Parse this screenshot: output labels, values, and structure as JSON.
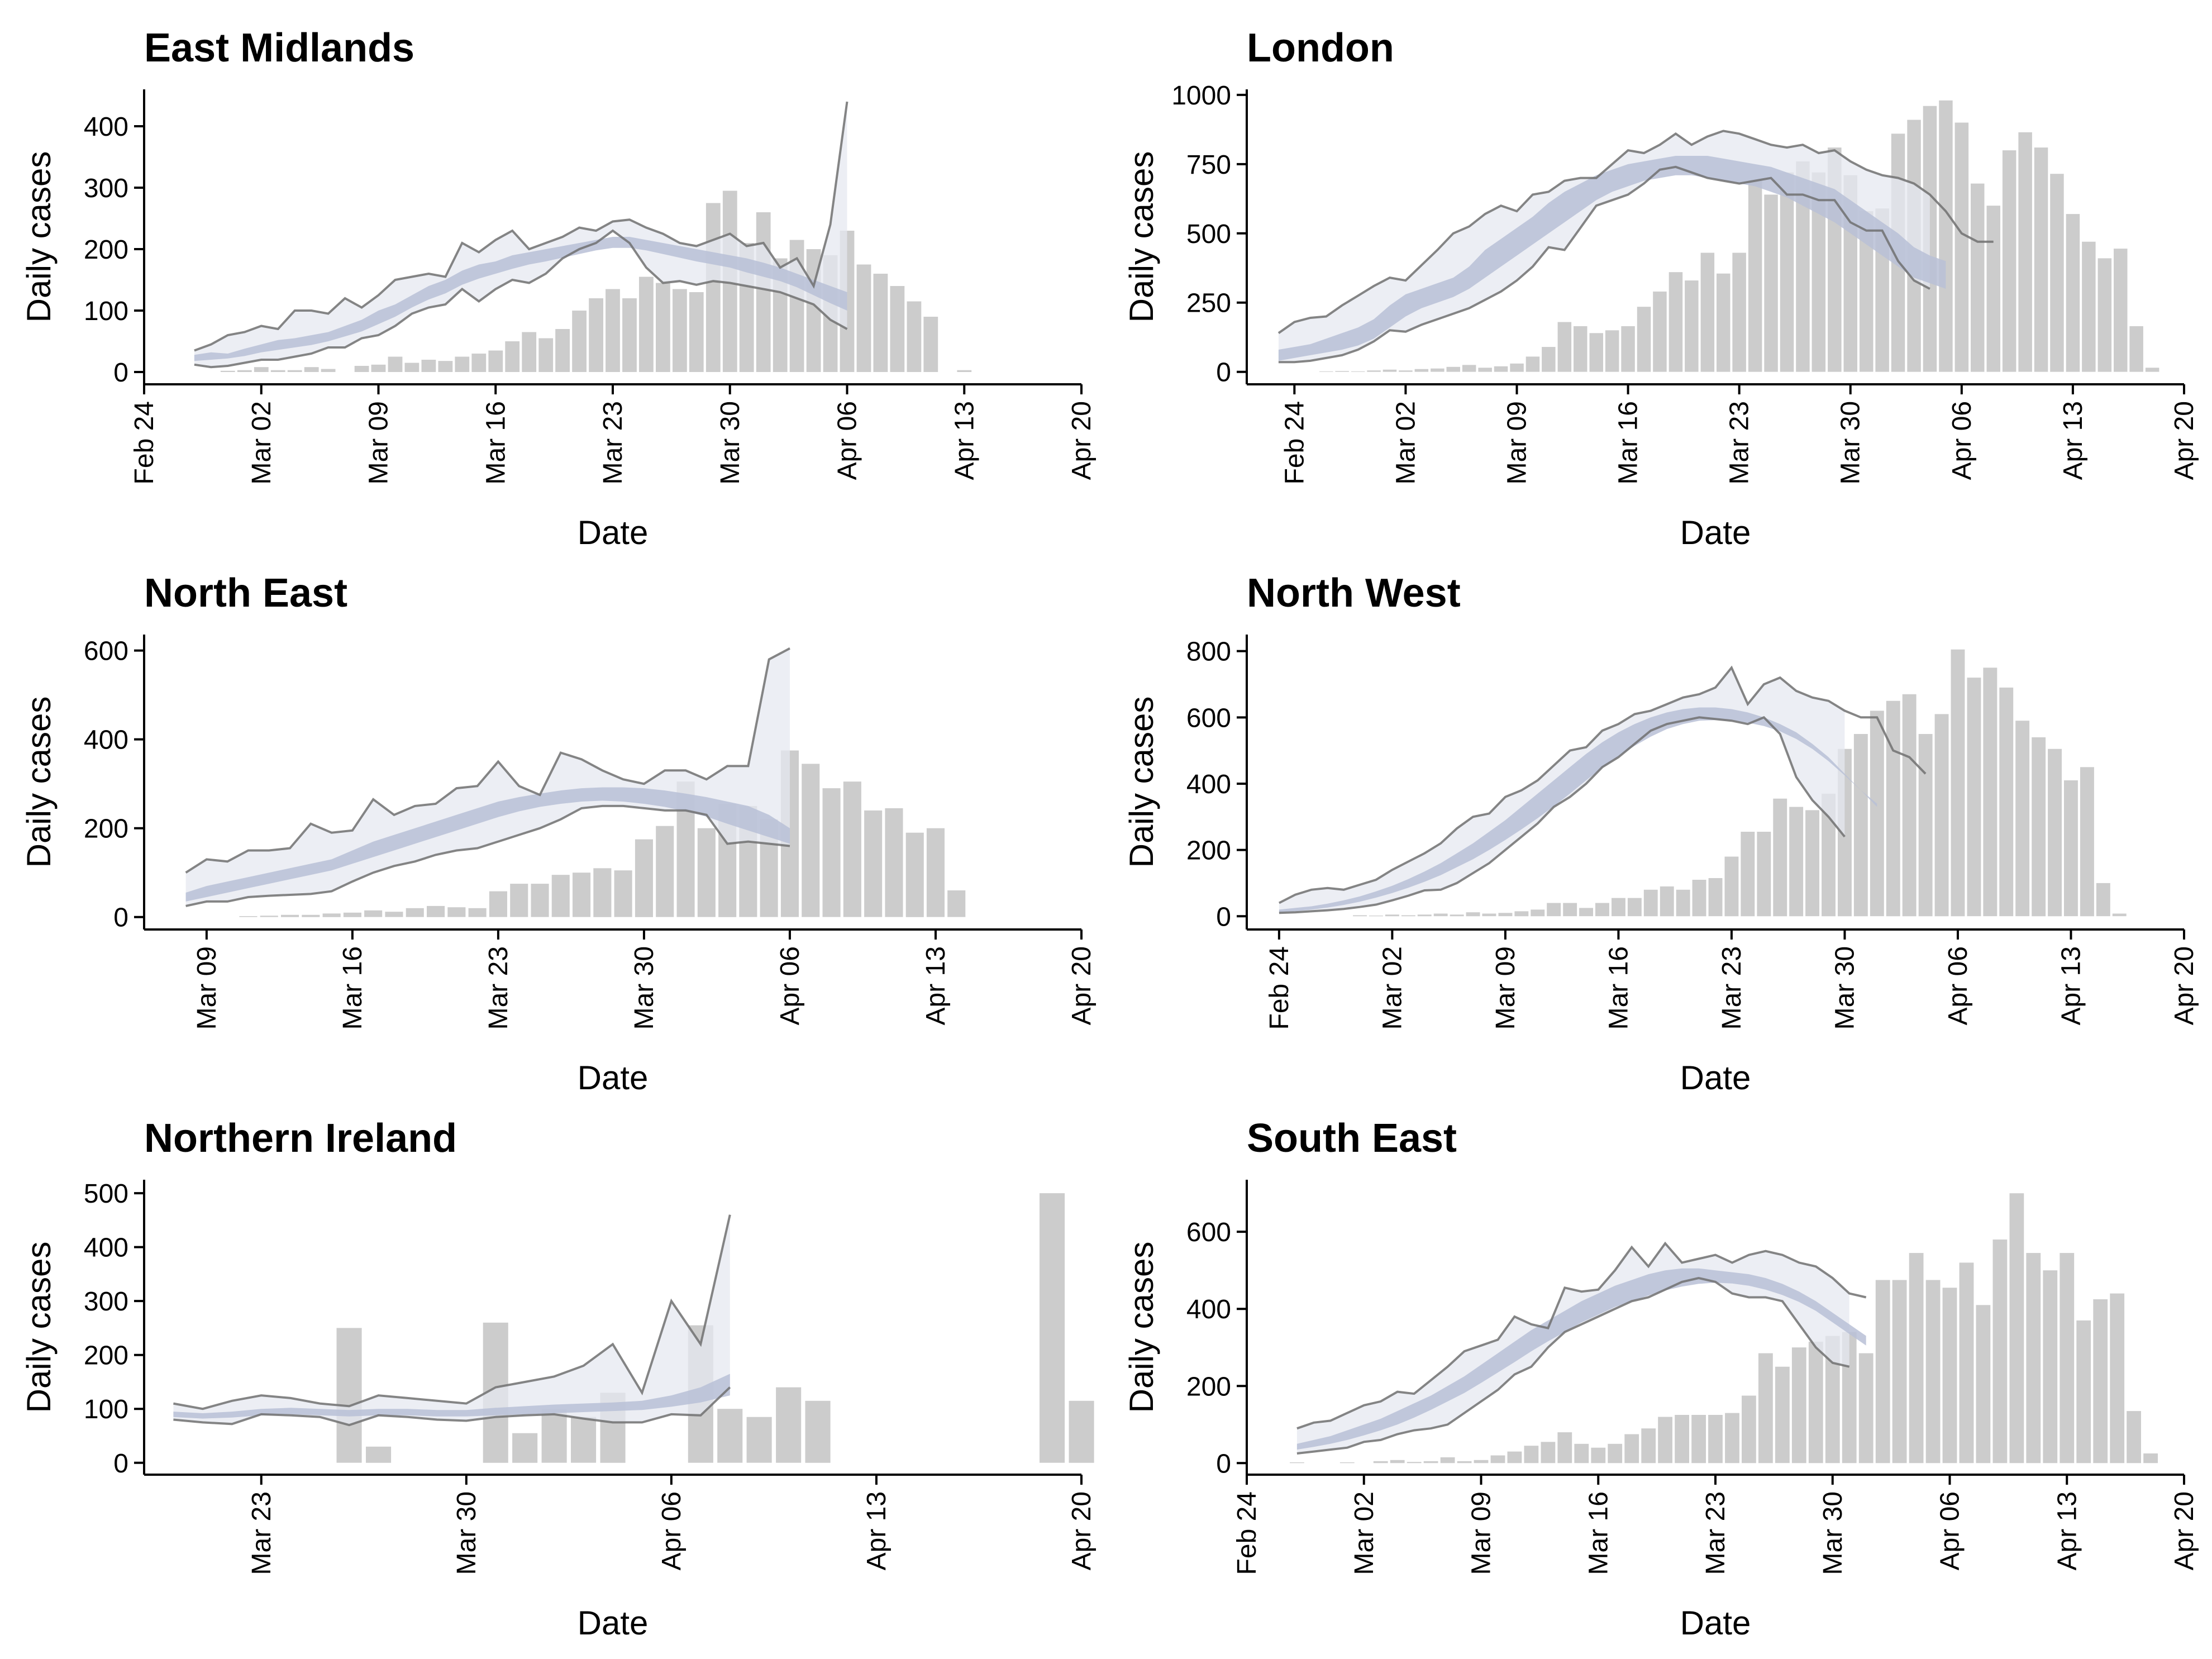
{
  "colors": {
    "bar": "#cccccc",
    "ribbon_outer": "#e6e8f0",
    "ribbon_inner": "#b9c0d6",
    "ci_line": "#707070",
    "axis": "#000000"
  },
  "chart_data": [
    {
      "type": "bar",
      "title": "East Midlands",
      "xlabel": "Date",
      "ylabel": "Daily cases",
      "x_range": [
        "2020-02-24",
        "2020-04-20"
      ],
      "x_ticks": [
        "Feb 24",
        "Mar 02",
        "Mar 09",
        "Mar 16",
        "Mar 23",
        "Mar 30",
        "Apr 06",
        "Apr 13",
        "Apr 20"
      ],
      "ylim": [
        -20,
        460
      ],
      "y_ticks": [
        0,
        100,
        200,
        300,
        400
      ],
      "y_tick_labels": [
        "0",
        "100",
        "200",
        "300",
        "400"
      ],
      "bars_start": "2020-02-27",
      "bar_values": [
        0,
        0,
        2,
        3,
        8,
        3,
        3,
        8,
        5,
        0,
        10,
        12,
        25,
        15,
        20,
        18,
        25,
        30,
        35,
        50,
        65,
        55,
        70,
        100,
        120,
        135,
        120,
        155,
        145,
        135,
        130,
        275,
        295,
        210,
        260,
        185,
        215,
        200,
        190,
        230,
        175,
        160,
        140,
        115,
        90,
        0,
        3
      ],
      "ribbon_start": "2020-02-27",
      "ci_outer_upper": [
        35,
        45,
        60,
        65,
        75,
        70,
        100,
        100,
        95,
        120,
        105,
        125,
        150,
        155,
        160,
        155,
        210,
        195,
        215,
        230,
        200,
        210,
        220,
        235,
        230,
        245,
        248,
        235,
        225,
        210,
        205,
        215,
        225,
        205,
        210,
        170,
        185,
        140,
        240,
        440
      ],
      "ci_outer_lower": [
        12,
        8,
        10,
        15,
        20,
        20,
        25,
        30,
        40,
        40,
        55,
        60,
        75,
        95,
        105,
        110,
        135,
        115,
        135,
        150,
        145,
        160,
        185,
        200,
        210,
        230,
        210,
        170,
        145,
        148,
        142,
        148,
        145,
        140,
        135,
        130,
        120,
        110,
        85,
        70
      ],
      "ci_inner_upper": [
        28,
        32,
        30,
        38,
        45,
        52,
        55,
        60,
        65,
        75,
        85,
        100,
        110,
        125,
        140,
        150,
        165,
        175,
        180,
        190,
        195,
        200,
        205,
        210,
        215,
        220,
        220,
        215,
        210,
        205,
        200,
        195,
        190,
        185,
        178,
        170,
        160,
        150,
        140,
        130
      ],
      "ci_inner_lower": [
        18,
        20,
        22,
        26,
        32,
        36,
        40,
        44,
        50,
        58,
        66,
        78,
        90,
        105,
        118,
        128,
        142,
        152,
        160,
        168,
        175,
        180,
        186,
        192,
        198,
        202,
        202,
        198,
        192,
        186,
        180,
        175,
        170,
        162,
        155,
        148,
        138,
        125,
        112,
        100
      ]
    },
    {
      "type": "bar",
      "title": "London",
      "xlabel": "Date",
      "ylabel": "Daily cases",
      "x_range": [
        "2020-02-21",
        "2020-04-20"
      ],
      "x_ticks": [
        "Feb 24",
        "Mar 02",
        "Mar 09",
        "Mar 16",
        "Mar 23",
        "Mar 30",
        "Apr 06",
        "Apr 13",
        "Apr 20"
      ],
      "ylim": [
        -45,
        1020
      ],
      "y_ticks": [
        0,
        250,
        500,
        750,
        1000
      ],
      "y_tick_labels": [
        "0",
        "250",
        "500",
        "750",
        "1000"
      ],
      "bars_start": "2020-02-23",
      "bar_values": [
        0,
        0,
        0,
        2,
        3,
        2,
        5,
        8,
        5,
        10,
        12,
        18,
        25,
        15,
        20,
        30,
        55,
        90,
        180,
        165,
        140,
        150,
        165,
        235,
        290,
        360,
        330,
        430,
        355,
        430,
        690,
        640,
        720,
        760,
        720,
        810,
        710,
        580,
        590,
        860,
        910,
        960,
        980,
        900,
        680,
        600,
        800,
        865,
        810,
        715,
        570,
        470,
        410,
        445,
        165,
        15
      ],
      "ribbon_start": "2020-02-23",
      "ci_outer_upper": [
        140,
        180,
        195,
        200,
        240,
        275,
        310,
        340,
        330,
        385,
        440,
        500,
        525,
        570,
        600,
        580,
        640,
        650,
        690,
        700,
        700,
        750,
        800,
        790,
        820,
        860,
        820,
        850,
        870,
        860,
        840,
        820,
        810,
        820,
        790,
        800,
        760,
        730,
        710,
        700,
        680,
        640,
        580,
        500,
        470,
        470
      ],
      "ci_outer_lower": [
        35,
        35,
        40,
        50,
        60,
        80,
        110,
        150,
        145,
        170,
        190,
        210,
        230,
        260,
        290,
        330,
        380,
        450,
        440,
        520,
        600,
        620,
        640,
        680,
        730,
        740,
        720,
        700,
        690,
        680,
        690,
        700,
        640,
        640,
        620,
        620,
        540,
        510,
        510,
        400,
        330,
        300
      ],
      "ci_inner_upper": [
        80,
        90,
        100,
        120,
        140,
        160,
        190,
        240,
        280,
        300,
        320,
        340,
        380,
        440,
        480,
        520,
        560,
        610,
        650,
        680,
        710,
        730,
        750,
        760,
        770,
        780,
        780,
        780,
        770,
        760,
        750,
        740,
        720,
        700,
        680,
        660,
        620,
        580,
        540,
        500,
        450,
        420,
        400
      ],
      "ci_inner_lower": [
        40,
        50,
        60,
        70,
        80,
        95,
        120,
        160,
        200,
        230,
        250,
        270,
        300,
        340,
        380,
        420,
        460,
        500,
        540,
        580,
        620,
        650,
        670,
        690,
        700,
        710,
        710,
        700,
        690,
        680,
        670,
        650,
        630,
        600,
        570,
        540,
        500,
        460,
        420,
        380,
        340,
        320,
        300
      ]
    },
    {
      "type": "bar",
      "title": "North East",
      "xlabel": "Date",
      "ylabel": "Daily cases",
      "x_range": [
        "2020-03-06",
        "2020-04-20"
      ],
      "x_ticks": [
        "Mar 09",
        "Mar 16",
        "Mar 23",
        "Mar 30",
        "Apr 06",
        "Apr 13",
        "Apr 20"
      ],
      "ylim": [
        -28,
        636
      ],
      "y_ticks": [
        0,
        200,
        400,
        600
      ],
      "y_tick_labels": [
        "0",
        "200",
        "400",
        "600"
      ],
      "bars_start": "2020-03-08",
      "bar_values": [
        0,
        0,
        0,
        2,
        3,
        5,
        5,
        8,
        10,
        15,
        12,
        20,
        25,
        22,
        20,
        58,
        75,
        75,
        95,
        100,
        110,
        105,
        175,
        205,
        305,
        200,
        255,
        250,
        220,
        375,
        345,
        290,
        305,
        240,
        245,
        190,
        200,
        60
      ],
      "ribbon_start": "2020-03-08",
      "ci_outer_upper": [
        100,
        130,
        125,
        150,
        150,
        155,
        210,
        190,
        195,
        265,
        230,
        250,
        255,
        290,
        295,
        350,
        295,
        275,
        370,
        355,
        330,
        310,
        300,
        330,
        330,
        310,
        340,
        340,
        580,
        605
      ],
      "ci_outer_lower": [
        25,
        35,
        35,
        45,
        48,
        50,
        52,
        58,
        80,
        100,
        115,
        125,
        140,
        150,
        155,
        170,
        185,
        200,
        220,
        245,
        250,
        250,
        245,
        240,
        240,
        230,
        165,
        170,
        165,
        160
      ],
      "ci_inner_upper": [
        55,
        70,
        80,
        90,
        100,
        110,
        120,
        130,
        150,
        170,
        185,
        200,
        215,
        230,
        245,
        260,
        270,
        278,
        285,
        290,
        292,
        292,
        290,
        285,
        278,
        270,
        260,
        250,
        230,
        200
      ],
      "ci_inner_lower": [
        35,
        45,
        55,
        65,
        75,
        85,
        95,
        105,
        120,
        135,
        150,
        165,
        180,
        195,
        210,
        225,
        238,
        248,
        255,
        260,
        262,
        260,
        255,
        248,
        238,
        226,
        210,
        195,
        180,
        165
      ]
    },
    {
      "type": "bar",
      "title": "North West",
      "xlabel": "Date",
      "ylabel": "Daily cases",
      "x_range": [
        "2020-02-22",
        "2020-04-20"
      ],
      "x_ticks": [
        "Feb 24",
        "Mar 02",
        "Mar 09",
        "Mar 16",
        "Mar 23",
        "Mar 30",
        "Apr 06",
        "Apr 13",
        "Apr 20"
      ],
      "ylim": [
        -40,
        850
      ],
      "y_ticks": [
        0,
        200,
        400,
        600,
        800
      ],
      "y_tick_labels": [
        "0",
        "200",
        "400",
        "600",
        "800"
      ],
      "bars_start": "2020-02-24",
      "bar_values": [
        0,
        0,
        0,
        0,
        0,
        3,
        2,
        5,
        3,
        5,
        8,
        5,
        12,
        8,
        10,
        15,
        20,
        40,
        40,
        25,
        40,
        55,
        55,
        80,
        90,
        80,
        110,
        115,
        180,
        255,
        255,
        355,
        330,
        320,
        370,
        505,
        550,
        620,
        650,
        670,
        550,
        610,
        805,
        720,
        750,
        690,
        590,
        540,
        505,
        410,
        450,
        100,
        8
      ],
      "ribbon_start": "2020-02-24",
      "ci_outer_upper": [
        40,
        65,
        80,
        85,
        80,
        95,
        110,
        140,
        165,
        190,
        220,
        265,
        300,
        310,
        360,
        380,
        410,
        455,
        500,
        510,
        560,
        580,
        610,
        620,
        640,
        660,
        670,
        690,
        750,
        640,
        700,
        720,
        680,
        660,
        650,
        620,
        600,
        600,
        500,
        480,
        430
      ],
      "ci_outer_lower": [
        10,
        12,
        15,
        18,
        22,
        28,
        35,
        48,
        62,
        78,
        80,
        100,
        130,
        160,
        200,
        240,
        280,
        330,
        360,
        400,
        450,
        480,
        520,
        560,
        580,
        590,
        600,
        595,
        590,
        580,
        600,
        550,
        420,
        350,
        300,
        240
      ],
      "ci_inner_upper": [
        20,
        25,
        30,
        38,
        48,
        60,
        75,
        92,
        112,
        135,
        160,
        190,
        220,
        255,
        290,
        330,
        370,
        410,
        450,
        490,
        525,
        555,
        580,
        600,
        615,
        625,
        630,
        630,
        625,
        615,
        600,
        580,
        555,
        520,
        480,
        430,
        380,
        340
      ],
      "ci_inner_lower": [
        12,
        15,
        20,
        26,
        34,
        44,
        56,
        70,
        86,
        104,
        124,
        148,
        172,
        200,
        230,
        262,
        296,
        332,
        370,
        410,
        448,
        482,
        514,
        542,
        565,
        580,
        590,
        592,
        590,
        584,
        574,
        558,
        535,
        505,
        468,
        425,
        380,
        330
      ]
    },
    {
      "type": "bar",
      "title": "Northern Ireland",
      "xlabel": "Date",
      "ylabel": "Daily cases",
      "x_range": [
        "2020-03-19",
        "2020-04-20"
      ],
      "x_ticks": [
        "Mar 23",
        "Mar 30",
        "Apr 06",
        "Apr 13",
        "Apr 20"
      ],
      "ylim": [
        -22,
        525
      ],
      "y_ticks": [
        0,
        100,
        200,
        300,
        400,
        500
      ],
      "y_tick_labels": [
        "0",
        "100",
        "200",
        "300",
        "400",
        "500"
      ],
      "bars_start": "2020-03-26",
      "bar_values": [
        250,
        30,
        0,
        0,
        0,
        260,
        55,
        100,
        85,
        130,
        0,
        0,
        255,
        100,
        85,
        140,
        115,
        0,
        0,
        0,
        0,
        0,
        0,
        0,
        500,
        115
      ],
      "ribbon_start": "2020-03-20",
      "ci_outer_upper": [
        110,
        100,
        115,
        125,
        120,
        110,
        105,
        125,
        120,
        115,
        110,
        140,
        150,
        160,
        180,
        220,
        130,
        300,
        220,
        460
      ],
      "ci_outer_lower": [
        80,
        75,
        72,
        90,
        88,
        85,
        70,
        88,
        85,
        80,
        78,
        85,
        88,
        90,
        82,
        75,
        75,
        90,
        88,
        140
      ],
      "ci_inner_upper": [
        95,
        92,
        95,
        100,
        102,
        100,
        98,
        100,
        100,
        98,
        98,
        102,
        105,
        108,
        110,
        112,
        115,
        125,
        140,
        165
      ],
      "ci_inner_lower": [
        85,
        82,
        84,
        88,
        90,
        88,
        86,
        88,
        88,
        86,
        86,
        88,
        90,
        92,
        94,
        96,
        98,
        104,
        112,
        125
      ]
    },
    {
      "type": "bar",
      "title": "South East",
      "xlabel": "Date",
      "ylabel": "Daily cases",
      "x_range": [
        "2020-02-24",
        "2020-04-20"
      ],
      "x_ticks": [
        "Feb 24",
        "Mar 02",
        "Mar 09",
        "Mar 16",
        "Mar 23",
        "Mar 30",
        "Apr 06",
        "Apr 13",
        "Apr 20"
      ],
      "ylim": [
        -30,
        735
      ],
      "y_ticks": [
        0,
        200,
        400,
        600
      ],
      "y_tick_labels": [
        "0",
        "200",
        "400",
        "600"
      ],
      "bars_start": "2020-02-27",
      "bar_values": [
        2,
        0,
        0,
        2,
        0,
        5,
        8,
        3,
        5,
        15,
        5,
        8,
        20,
        30,
        45,
        55,
        80,
        50,
        40,
        50,
        75,
        90,
        120,
        125,
        125,
        125,
        130,
        175,
        285,
        250,
        300,
        315,
        330,
        340,
        285,
        475,
        475,
        545,
        475,
        455,
        520,
        410,
        580,
        700,
        545,
        500,
        545,
        370,
        425,
        440,
        135,
        25
      ],
      "ribbon_start": "2020-02-27",
      "ci_outer_upper": [
        90,
        105,
        110,
        130,
        150,
        160,
        185,
        180,
        215,
        250,
        290,
        305,
        320,
        380,
        360,
        350,
        455,
        445,
        450,
        500,
        560,
        510,
        570,
        520,
        530,
        540,
        520,
        540,
        550,
        540,
        520,
        510,
        480,
        440,
        430
      ],
      "ci_outer_lower": [
        25,
        30,
        35,
        40,
        55,
        60,
        75,
        85,
        90,
        100,
        130,
        160,
        190,
        230,
        250,
        300,
        340,
        360,
        380,
        400,
        420,
        430,
        450,
        470,
        480,
        470,
        440,
        430,
        430,
        420,
        360,
        300,
        260,
        250
      ],
      "ci_inner_upper": [
        50,
        60,
        70,
        85,
        100,
        115,
        135,
        155,
        175,
        200,
        225,
        255,
        285,
        315,
        345,
        370,
        395,
        420,
        440,
        460,
        475,
        490,
        500,
        505,
        505,
        500,
        495,
        490,
        480,
        465,
        445,
        420,
        390,
        360,
        330
      ],
      "ci_inner_lower": [
        35,
        42,
        50,
        60,
        72,
        85,
        100,
        118,
        138,
        160,
        182,
        208,
        235,
        262,
        290,
        316,
        340,
        365,
        385,
        405,
        420,
        435,
        448,
        458,
        465,
        468,
        466,
        460,
        450,
        436,
        418,
        395,
        365,
        335,
        305
      ]
    }
  ]
}
